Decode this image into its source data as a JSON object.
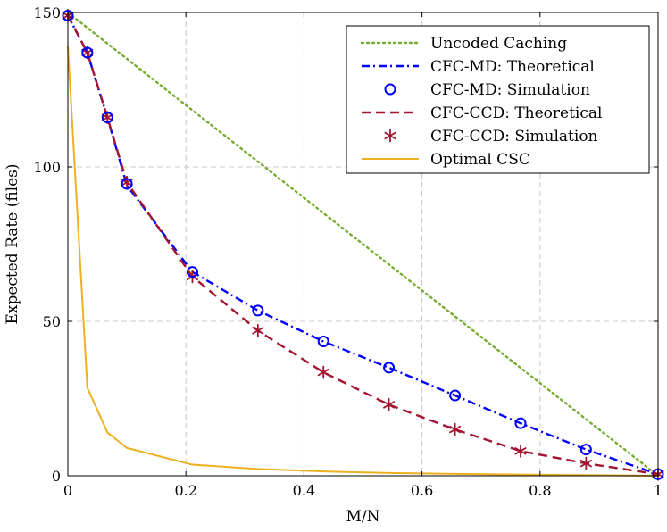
{
  "chart_data": {
    "type": "line",
    "xlabel": "M/N",
    "ylabel": "Expected Rate (files)",
    "xlim": [
      0,
      1
    ],
    "ylim": [
      0,
      150
    ],
    "xticks": [
      0,
      0.2,
      0.4,
      0.6,
      0.8,
      1
    ],
    "xtick_labels": [
      "0",
      "0.2",
      "0.4",
      "0.6",
      "0.8",
      "1"
    ],
    "yticks": [
      0,
      50,
      100,
      150
    ],
    "ytick_labels": [
      "0",
      "50",
      "100",
      "150"
    ],
    "grid": true,
    "legend_position": "top-right",
    "series": [
      {
        "name": "Uncoded Caching",
        "style": "dotted-line",
        "color": "#77ac30",
        "x": [
          0,
          1
        ],
        "y": [
          150,
          0
        ]
      },
      {
        "name": "CFC-MD: Theoretical",
        "style": "dashdot-line",
        "color": "#0000ff",
        "x": [
          0,
          0.033,
          0.067,
          0.1,
          0.211,
          0.322,
          0.433,
          0.544,
          0.656,
          0.767,
          0.878,
          1
        ],
        "y": [
          149,
          137,
          116,
          94,
          66,
          53.5,
          43.5,
          35,
          26,
          17,
          8.5,
          0.5
        ]
      },
      {
        "name": "CFC-MD: Simulation",
        "style": "circle-marker",
        "color": "#0000ff",
        "x": [
          0,
          0.033,
          0.067,
          0.1,
          0.211,
          0.322,
          0.433,
          0.544,
          0.656,
          0.767,
          0.878,
          1
        ],
        "y": [
          149,
          137,
          116,
          94.5,
          66,
          53.5,
          43.5,
          35,
          26,
          17,
          8.5,
          0.5
        ]
      },
      {
        "name": "CFC-CCD: Theoretical",
        "style": "dashed-line",
        "color": "#a2142f",
        "x": [
          0,
          0.033,
          0.067,
          0.1,
          0.211,
          0.322,
          0.433,
          0.544,
          0.656,
          0.767,
          0.878,
          1
        ],
        "y": [
          149,
          137,
          116,
          95,
          64.5,
          47,
          33.5,
          23,
          15,
          8,
          4,
          0.5
        ]
      },
      {
        "name": "CFC-CCD: Simulation",
        "style": "star-marker",
        "color": "#a2142f",
        "x": [
          0,
          0.033,
          0.067,
          0.1,
          0.211,
          0.322,
          0.433,
          0.544,
          0.656,
          0.767,
          0.878,
          1
        ],
        "y": [
          149,
          137,
          116,
          95,
          64.5,
          47,
          33.5,
          23,
          15,
          8,
          4,
          0.5
        ]
      },
      {
        "name": "Optimal CSC",
        "style": "solid-line",
        "color": "#edb120",
        "x": [
          0,
          0.033,
          0.067,
          0.1,
          0.211,
          0.322,
          0.433,
          0.544,
          0.656,
          0.767,
          0.878,
          1
        ],
        "y": [
          139,
          28.5,
          14,
          9,
          3.6,
          2.2,
          1.4,
          0.9,
          0.6,
          0.4,
          0.2,
          0
        ]
      }
    ]
  }
}
